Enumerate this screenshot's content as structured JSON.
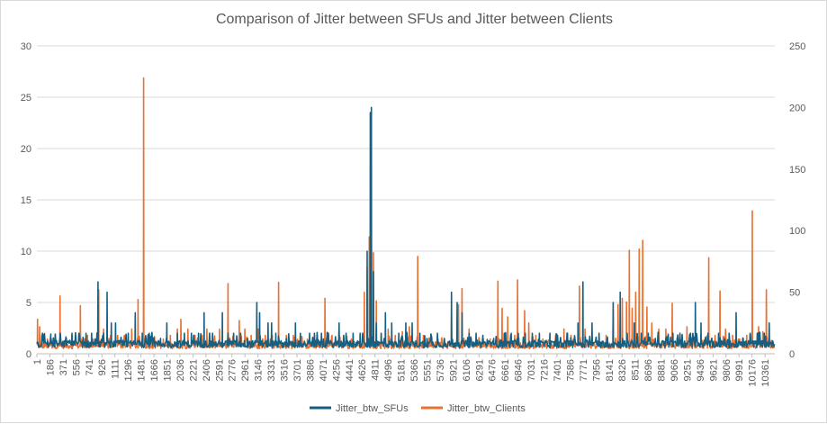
{
  "chart_data": {
    "type": "line",
    "title": "Comparison of Jitter between SFUs and Jitter between Clients",
    "xlabel": "",
    "ylabel": "",
    "y2label": "",
    "ylim": [
      0,
      30
    ],
    "y2lim": [
      0,
      250
    ],
    "yticks": [
      "0",
      "5",
      "10",
      "15",
      "20",
      "25",
      "30"
    ],
    "y2ticks": [
      "0",
      "50",
      "100",
      "150",
      "200",
      "250"
    ],
    "xticks": [
      "1",
      "186",
      "371",
      "556",
      "741",
      "926",
      "1111",
      "1296",
      "1481",
      "1666",
      "1851",
      "2036",
      "2221",
      "2406",
      "2591",
      "2776",
      "2961",
      "3146",
      "3331",
      "3516",
      "3701",
      "3886",
      "4071",
      "4256",
      "4441",
      "4626",
      "4811",
      "4996",
      "5181",
      "5366",
      "5551",
      "5736",
      "5921",
      "6106",
      "6291",
      "6476",
      "6661",
      "6846",
      "7031",
      "7216",
      "7401",
      "7586",
      "7771",
      "7956",
      "8141",
      "8326",
      "8511",
      "8696",
      "8881",
      "9066",
      "9251",
      "9436",
      "9621",
      "9806",
      "9991",
      "10176",
      "10361"
    ],
    "x_min": 1,
    "x_max": 10500,
    "legend": "bottom",
    "grid": true,
    "series": [
      {
        "name": "Jitter_btw_SFUs",
        "axis": "left",
        "color": "#156082",
        "baseline": 1,
        "peaks": [
          [
            80,
            2
          ],
          [
            200,
            1
          ],
          [
            300,
            1
          ],
          [
            420,
            1.5
          ],
          [
            500,
            2
          ],
          [
            600,
            2
          ],
          [
            700,
            2
          ],
          [
            780,
            2
          ],
          [
            870,
            7
          ],
          [
            950,
            2
          ],
          [
            1000,
            6
          ],
          [
            1060,
            3
          ],
          [
            1120,
            3
          ],
          [
            1180,
            1
          ],
          [
            1300,
            2
          ],
          [
            1400,
            4
          ],
          [
            1500,
            2
          ],
          [
            1600,
            2
          ],
          [
            1760,
            1.5
          ],
          [
            1850,
            3
          ],
          [
            2000,
            2
          ],
          [
            2100,
            2
          ],
          [
            2200,
            2
          ],
          [
            2300,
            2
          ],
          [
            2380,
            4
          ],
          [
            2500,
            2
          ],
          [
            2640,
            4
          ],
          [
            2720,
            2
          ],
          [
            2800,
            2
          ],
          [
            2900,
            2
          ],
          [
            3000,
            1.5
          ],
          [
            3130,
            5
          ],
          [
            3170,
            4
          ],
          [
            3290,
            3
          ],
          [
            3340,
            3
          ],
          [
            3400,
            2
          ],
          [
            3550,
            1.5
          ],
          [
            3680,
            3
          ],
          [
            3750,
            2
          ],
          [
            3880,
            2
          ],
          [
            3950,
            2
          ],
          [
            4050,
            2
          ],
          [
            4150,
            2
          ],
          [
            4300,
            3
          ],
          [
            4400,
            2
          ],
          [
            4500,
            2
          ],
          [
            4600,
            2
          ],
          [
            4700,
            10
          ],
          [
            4745,
            23.5
          ],
          [
            4760,
            24
          ],
          [
            4790,
            8
          ],
          [
            4830,
            3
          ],
          [
            4900,
            2
          ],
          [
            4960,
            4
          ],
          [
            5050,
            3
          ],
          [
            5150,
            2
          ],
          [
            5250,
            3
          ],
          [
            5340,
            3
          ],
          [
            5450,
            2
          ],
          [
            5550,
            1.5
          ],
          [
            5700,
            2
          ],
          [
            5900,
            6
          ],
          [
            5980,
            5
          ],
          [
            6050,
            4
          ],
          [
            6150,
            2
          ],
          [
            6250,
            2
          ],
          [
            6350,
            1.5
          ],
          [
            6500,
            1.5
          ],
          [
            6650,
            2
          ],
          [
            6750,
            2
          ],
          [
            6850,
            2
          ],
          [
            6950,
            2
          ],
          [
            7050,
            2
          ],
          [
            7150,
            2
          ],
          [
            7300,
            2
          ],
          [
            7400,
            1.5
          ],
          [
            7550,
            2
          ],
          [
            7700,
            3
          ],
          [
            7770,
            7
          ],
          [
            7900,
            3
          ],
          [
            8000,
            2
          ],
          [
            8200,
            5
          ],
          [
            8300,
            6
          ],
          [
            8400,
            2
          ],
          [
            8500,
            3
          ],
          [
            8600,
            2
          ],
          [
            8700,
            2
          ],
          [
            8800,
            1.5
          ],
          [
            8950,
            1.5
          ],
          [
            9050,
            2
          ],
          [
            9150,
            2
          ],
          [
            9300,
            2
          ],
          [
            9370,
            5
          ],
          [
            9450,
            3
          ],
          [
            9550,
            2
          ],
          [
            9700,
            2
          ],
          [
            9850,
            2
          ],
          [
            9950,
            4
          ],
          [
            10050,
            1.5
          ],
          [
            10150,
            2
          ],
          [
            10250,
            2
          ],
          [
            10350,
            2
          ],
          [
            10420,
            3
          ]
        ]
      },
      {
        "name": "Jitter_btw_Clients",
        "axis": "right",
        "color": "#e97132",
        "baseline": 7,
        "peaks": [
          [
            10,
            28
          ],
          [
            40,
            22
          ],
          [
            90,
            15
          ],
          [
            150,
            12
          ],
          [
            250,
            10
          ],
          [
            330,
            47
          ],
          [
            420,
            12
          ],
          [
            500,
            15
          ],
          [
            620,
            39
          ],
          [
            720,
            15
          ],
          [
            800,
            12
          ],
          [
            880,
            52
          ],
          [
            950,
            20
          ],
          [
            1050,
            15
          ],
          [
            1150,
            15
          ],
          [
            1250,
            15
          ],
          [
            1350,
            20
          ],
          [
            1440,
            44
          ],
          [
            1520,
            224
          ],
          [
            1580,
            15
          ],
          [
            1700,
            10
          ],
          [
            1800,
            12
          ],
          [
            1900,
            15
          ],
          [
            2000,
            20
          ],
          [
            2050,
            28
          ],
          [
            2150,
            20
          ],
          [
            2250,
            15
          ],
          [
            2350,
            15
          ],
          [
            2420,
            20
          ],
          [
            2500,
            15
          ],
          [
            2600,
            20
          ],
          [
            2720,
            57
          ],
          [
            2800,
            15
          ],
          [
            2880,
            27
          ],
          [
            2960,
            20
          ],
          [
            3050,
            15
          ],
          [
            3150,
            20
          ],
          [
            3250,
            15
          ],
          [
            3350,
            15
          ],
          [
            3440,
            58
          ],
          [
            3550,
            15
          ],
          [
            3650,
            15
          ],
          [
            3750,
            15
          ],
          [
            3850,
            12
          ],
          [
            3950,
            15
          ],
          [
            4050,
            15
          ],
          [
            4100,
            45
          ],
          [
            4200,
            15
          ],
          [
            4300,
            20
          ],
          [
            4400,
            15
          ],
          [
            4500,
            15
          ],
          [
            4600,
            15
          ],
          [
            4660,
            50
          ],
          [
            4700,
            70
          ],
          [
            4730,
            95
          ],
          [
            4760,
            115
          ],
          [
            4790,
            82
          ],
          [
            4830,
            43
          ],
          [
            4900,
            15
          ],
          [
            5000,
            20
          ],
          [
            5100,
            15
          ],
          [
            5200,
            18
          ],
          [
            5300,
            22
          ],
          [
            5420,
            79
          ],
          [
            5500,
            15
          ],
          [
            5600,
            12
          ],
          [
            5700,
            15
          ],
          [
            5800,
            12
          ],
          [
            5900,
            30
          ],
          [
            6000,
            40
          ],
          [
            6050,
            53
          ],
          [
            6150,
            20
          ],
          [
            6250,
            15
          ],
          [
            6350,
            10
          ],
          [
            6450,
            12
          ],
          [
            6560,
            59
          ],
          [
            6620,
            37
          ],
          [
            6700,
            30
          ],
          [
            6800,
            15
          ],
          [
            6840,
            60
          ],
          [
            6940,
            35
          ],
          [
            7000,
            25
          ],
          [
            7100,
            15
          ],
          [
            7200,
            12
          ],
          [
            7300,
            15
          ],
          [
            7400,
            12
          ],
          [
            7500,
            20
          ],
          [
            7600,
            15
          ],
          [
            7720,
            55
          ],
          [
            7800,
            20
          ],
          [
            7900,
            15
          ],
          [
            8000,
            15
          ],
          [
            8100,
            15
          ],
          [
            8200,
            35
          ],
          [
            8270,
            40
          ],
          [
            8330,
            45
          ],
          [
            8390,
            42
          ],
          [
            8430,
            84
          ],
          [
            8470,
            37
          ],
          [
            8520,
            50
          ],
          [
            8570,
            85
          ],
          [
            8620,
            92
          ],
          [
            8680,
            38
          ],
          [
            8750,
            25
          ],
          [
            8850,
            20
          ],
          [
            8950,
            20
          ],
          [
            9040,
            41
          ],
          [
            9150,
            15
          ],
          [
            9250,
            22
          ],
          [
            9350,
            12
          ],
          [
            9450,
            15
          ],
          [
            9560,
            78
          ],
          [
            9650,
            15
          ],
          [
            9720,
            51
          ],
          [
            9800,
            20
          ],
          [
            9900,
            15
          ],
          [
            10000,
            12
          ],
          [
            10100,
            15
          ],
          [
            10180,
            116
          ],
          [
            10270,
            22
          ],
          [
            10330,
            18
          ],
          [
            10380,
            52
          ],
          [
            10420,
            20
          ]
        ]
      }
    ]
  }
}
